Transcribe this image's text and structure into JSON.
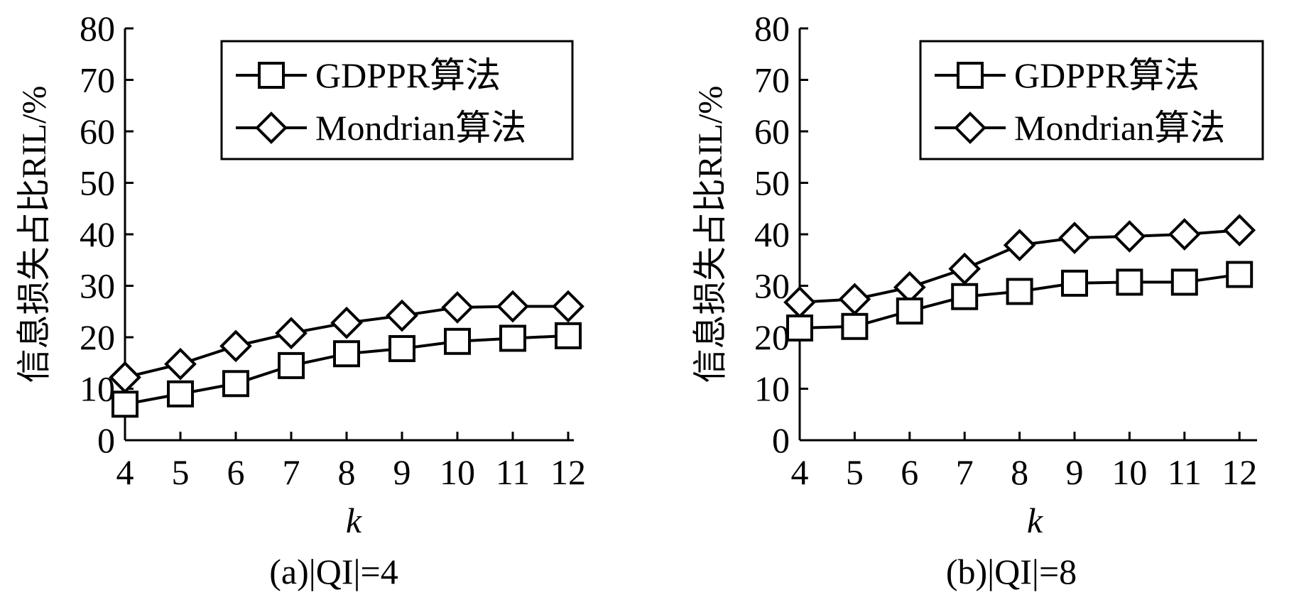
{
  "chart_data": [
    {
      "type": "line",
      "caption": "(a)|QI|=4",
      "xlabel": "k",
      "ylabel": "信息损失占比RIL/%",
      "categories": [
        "4",
        "5",
        "6",
        "7",
        "8",
        "9",
        "10",
        "11",
        "12"
      ],
      "x": [
        4,
        5,
        6,
        7,
        8,
        9,
        10,
        11,
        12
      ],
      "ylim": [
        0,
        80
      ],
      "yticks": [
        "0",
        "10",
        "20",
        "30",
        "40",
        "50",
        "60",
        "70",
        "80"
      ],
      "grid": false,
      "legend_position": "top-right",
      "series": [
        {
          "name": "GDPPR算法",
          "marker": "square",
          "values": [
            7,
            9,
            11,
            14.5,
            16.8,
            17.8,
            19.2,
            19.8,
            20.3
          ]
        },
        {
          "name": "Mondrian算法",
          "marker": "diamond",
          "values": [
            12.2,
            14.8,
            18.3,
            20.8,
            22.8,
            24.2,
            25.8,
            26,
            26
          ]
        }
      ]
    },
    {
      "type": "line",
      "caption": "(b)|QI|=8",
      "xlabel": "k",
      "ylabel": "信息损失占比RIL/%",
      "categories": [
        "4",
        "5",
        "6",
        "7",
        "8",
        "9",
        "10",
        "11",
        "12"
      ],
      "x": [
        4,
        5,
        6,
        7,
        8,
        9,
        10,
        11,
        12
      ],
      "ylim": [
        0,
        80
      ],
      "yticks": [
        "0",
        "10",
        "20",
        "30",
        "40",
        "50",
        "60",
        "70",
        "80"
      ],
      "grid": false,
      "legend_position": "top-right",
      "series": [
        {
          "name": "GDPPR算法",
          "marker": "square",
          "values": [
            21.8,
            22.1,
            25.1,
            27.9,
            28.9,
            30.5,
            30.7,
            30.7,
            32.2
          ]
        },
        {
          "name": "Mondrian算法",
          "marker": "diamond",
          "values": [
            26.8,
            27.4,
            29.7,
            33.3,
            37.9,
            39.3,
            39.6,
            40,
            40.8
          ]
        }
      ]
    }
  ]
}
